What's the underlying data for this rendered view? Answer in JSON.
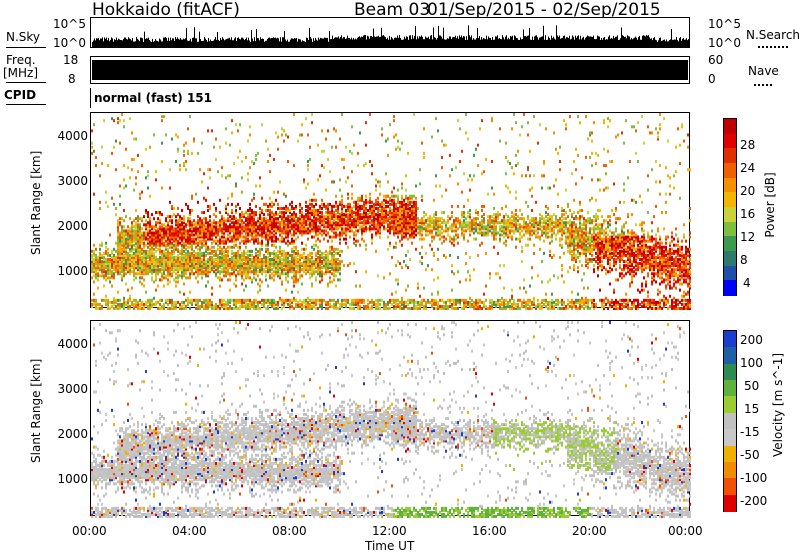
{
  "header": {
    "title": "Hokkaido (fitACF)",
    "beam": "Beam 03",
    "date_range": "01/Sep/2015 - 02/Sep/2015"
  },
  "top_panels": {
    "nsky_label": "N.Sky",
    "nsky_ticks": [
      "10^5",
      "10^0"
    ],
    "nsearch_label": "N.Search",
    "nsearch_ticks": [
      "10^5",
      "10^0"
    ],
    "freq_label": "Freq.",
    "freq_unit": "[MHz]",
    "freq_ticks": [
      "18",
      "8"
    ],
    "nave_label": "Nave",
    "nave_ticks": [
      "60",
      "0"
    ],
    "cpid_label": "CPID",
    "cpid_value": "normal (fast) 151"
  },
  "colors": {
    "power_scale": [
      "#0000ff",
      "#1f4fa8",
      "#2f7a6e",
      "#3c9a4e",
      "#7fbf3f",
      "#c8d23a",
      "#f5b400",
      "#f59000",
      "#f06000",
      "#e03000",
      "#e00000",
      "#c00000"
    ],
    "velocity_scale": [
      "#1a3fcf",
      "#1f5fa8",
      "#2e8a50",
      "#5fb23c",
      "#9acd32",
      "#c0c0c0",
      "#c8c8c8",
      "#f0b000",
      "#f08c00",
      "#f05000",
      "#e00000"
    ]
  },
  "chart_data": [
    {
      "type": "heatmap",
      "ylabel": "Slant Range [km]",
      "xlabel": "Time UT",
      "xticks": [
        "00:00",
        "04:00",
        "08:00",
        "12:00",
        "16:00",
        "20:00",
        "00:00"
      ],
      "yticks": [
        "4000",
        "3000",
        "2000",
        "1000"
      ],
      "ylim": [
        180,
        4500
      ],
      "colorbar": {
        "label": "Power [dB]",
        "ticks": [
          "28",
          "24",
          "20",
          "16",
          "12",
          "8",
          "4"
        ],
        "range": [
          0,
          30
        ]
      }
    },
    {
      "type": "heatmap",
      "ylabel": "Slant Range [km]",
      "xlabel": "Time UT",
      "xticks": [
        "00:00",
        "04:00",
        "08:00",
        "12:00",
        "16:00",
        "20:00",
        "00:00"
      ],
      "yticks": [
        "4000",
        "3000",
        "2000",
        "1000"
      ],
      "ylim": [
        180,
        4500
      ],
      "colorbar": {
        "label": "Velocity [m s^-1]",
        "ticks": [
          "200",
          "100",
          "50",
          "15",
          "-15",
          "-50",
          "-100",
          "-200"
        ],
        "range": [
          -250,
          250
        ]
      }
    }
  ]
}
